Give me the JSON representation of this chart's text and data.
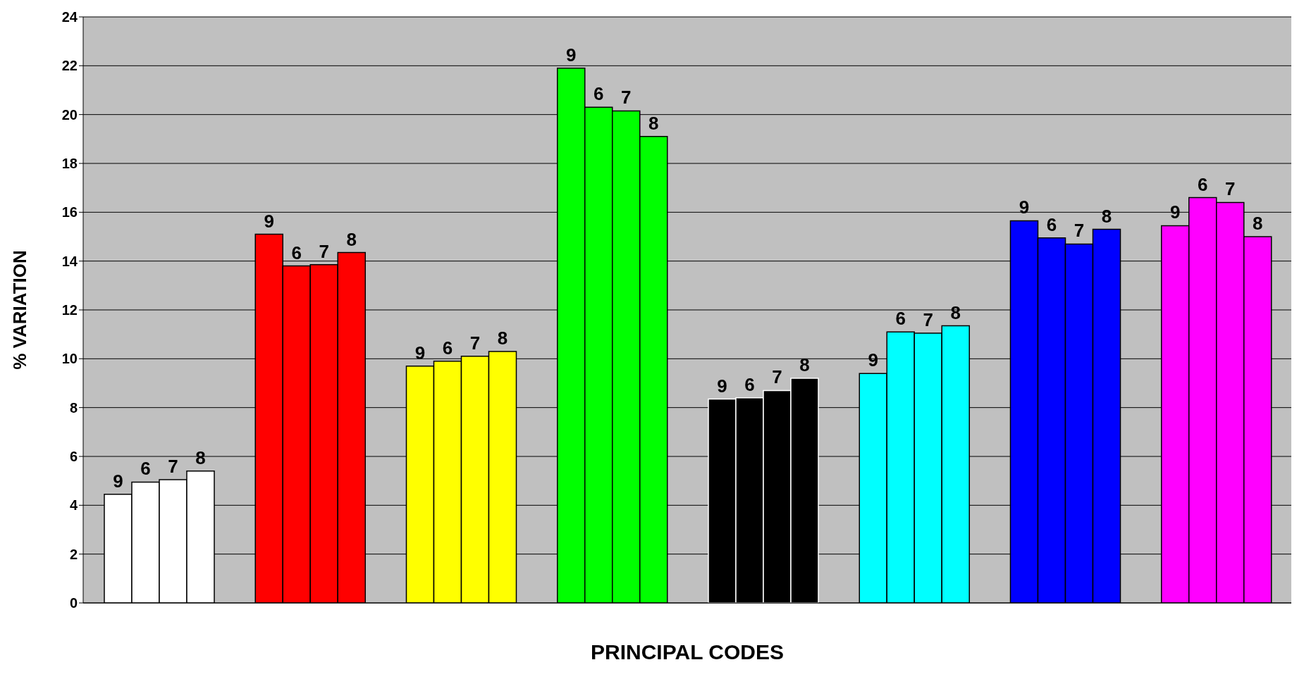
{
  "chart_data": {
    "type": "bar",
    "xlabel": "PRINCIPAL CODES",
    "ylabel": "% VARIATION",
    "categories": [
      null,
      null,
      null,
      null,
      null,
      null,
      null,
      null
    ],
    "series": [
      {
        "name": "9",
        "colors": [
          "#ffffff",
          "#ff0000",
          "#ffff00",
          "#00ff00",
          "#000000",
          "#00ffff",
          "#0000ff",
          "#ff00ff"
        ],
        "values": [
          4.45,
          15.1,
          9.7,
          21.9,
          8.35,
          9.4,
          15.65,
          15.45
        ]
      },
      {
        "name": "6",
        "colors": [
          "#ffffff",
          "#ff0000",
          "#ffff00",
          "#00ff00",
          "#000000",
          "#00ffff",
          "#0000ff",
          "#ff00ff"
        ],
        "values": [
          4.95,
          13.8,
          9.9,
          20.3,
          8.4,
          11.1,
          14.95,
          16.6
        ]
      },
      {
        "name": "7",
        "colors": [
          "#ffffff",
          "#ff0000",
          "#ffff00",
          "#00ff00",
          "#000000",
          "#00ffff",
          "#0000ff",
          "#ff00ff"
        ],
        "values": [
          5.05,
          13.85,
          10.1,
          20.15,
          8.7,
          11.05,
          14.7,
          16.4
        ]
      },
      {
        "name": "8",
        "colors": [
          "#ffffff",
          "#ff0000",
          "#ffff00",
          "#00ff00",
          "#000000",
          "#00ffff",
          "#0000ff",
          "#ff00ff"
        ],
        "values": [
          5.4,
          14.35,
          10.3,
          19.1,
          9.2,
          11.35,
          15.3,
          15.0
        ]
      }
    ],
    "ylim": [
      0,
      24
    ],
    "yticks": [
      0,
      2,
      4,
      6,
      8,
      10,
      12,
      14,
      16,
      18,
      20,
      22,
      24
    ],
    "grid": "y",
    "legend": false,
    "tick_labels": "y"
  }
}
